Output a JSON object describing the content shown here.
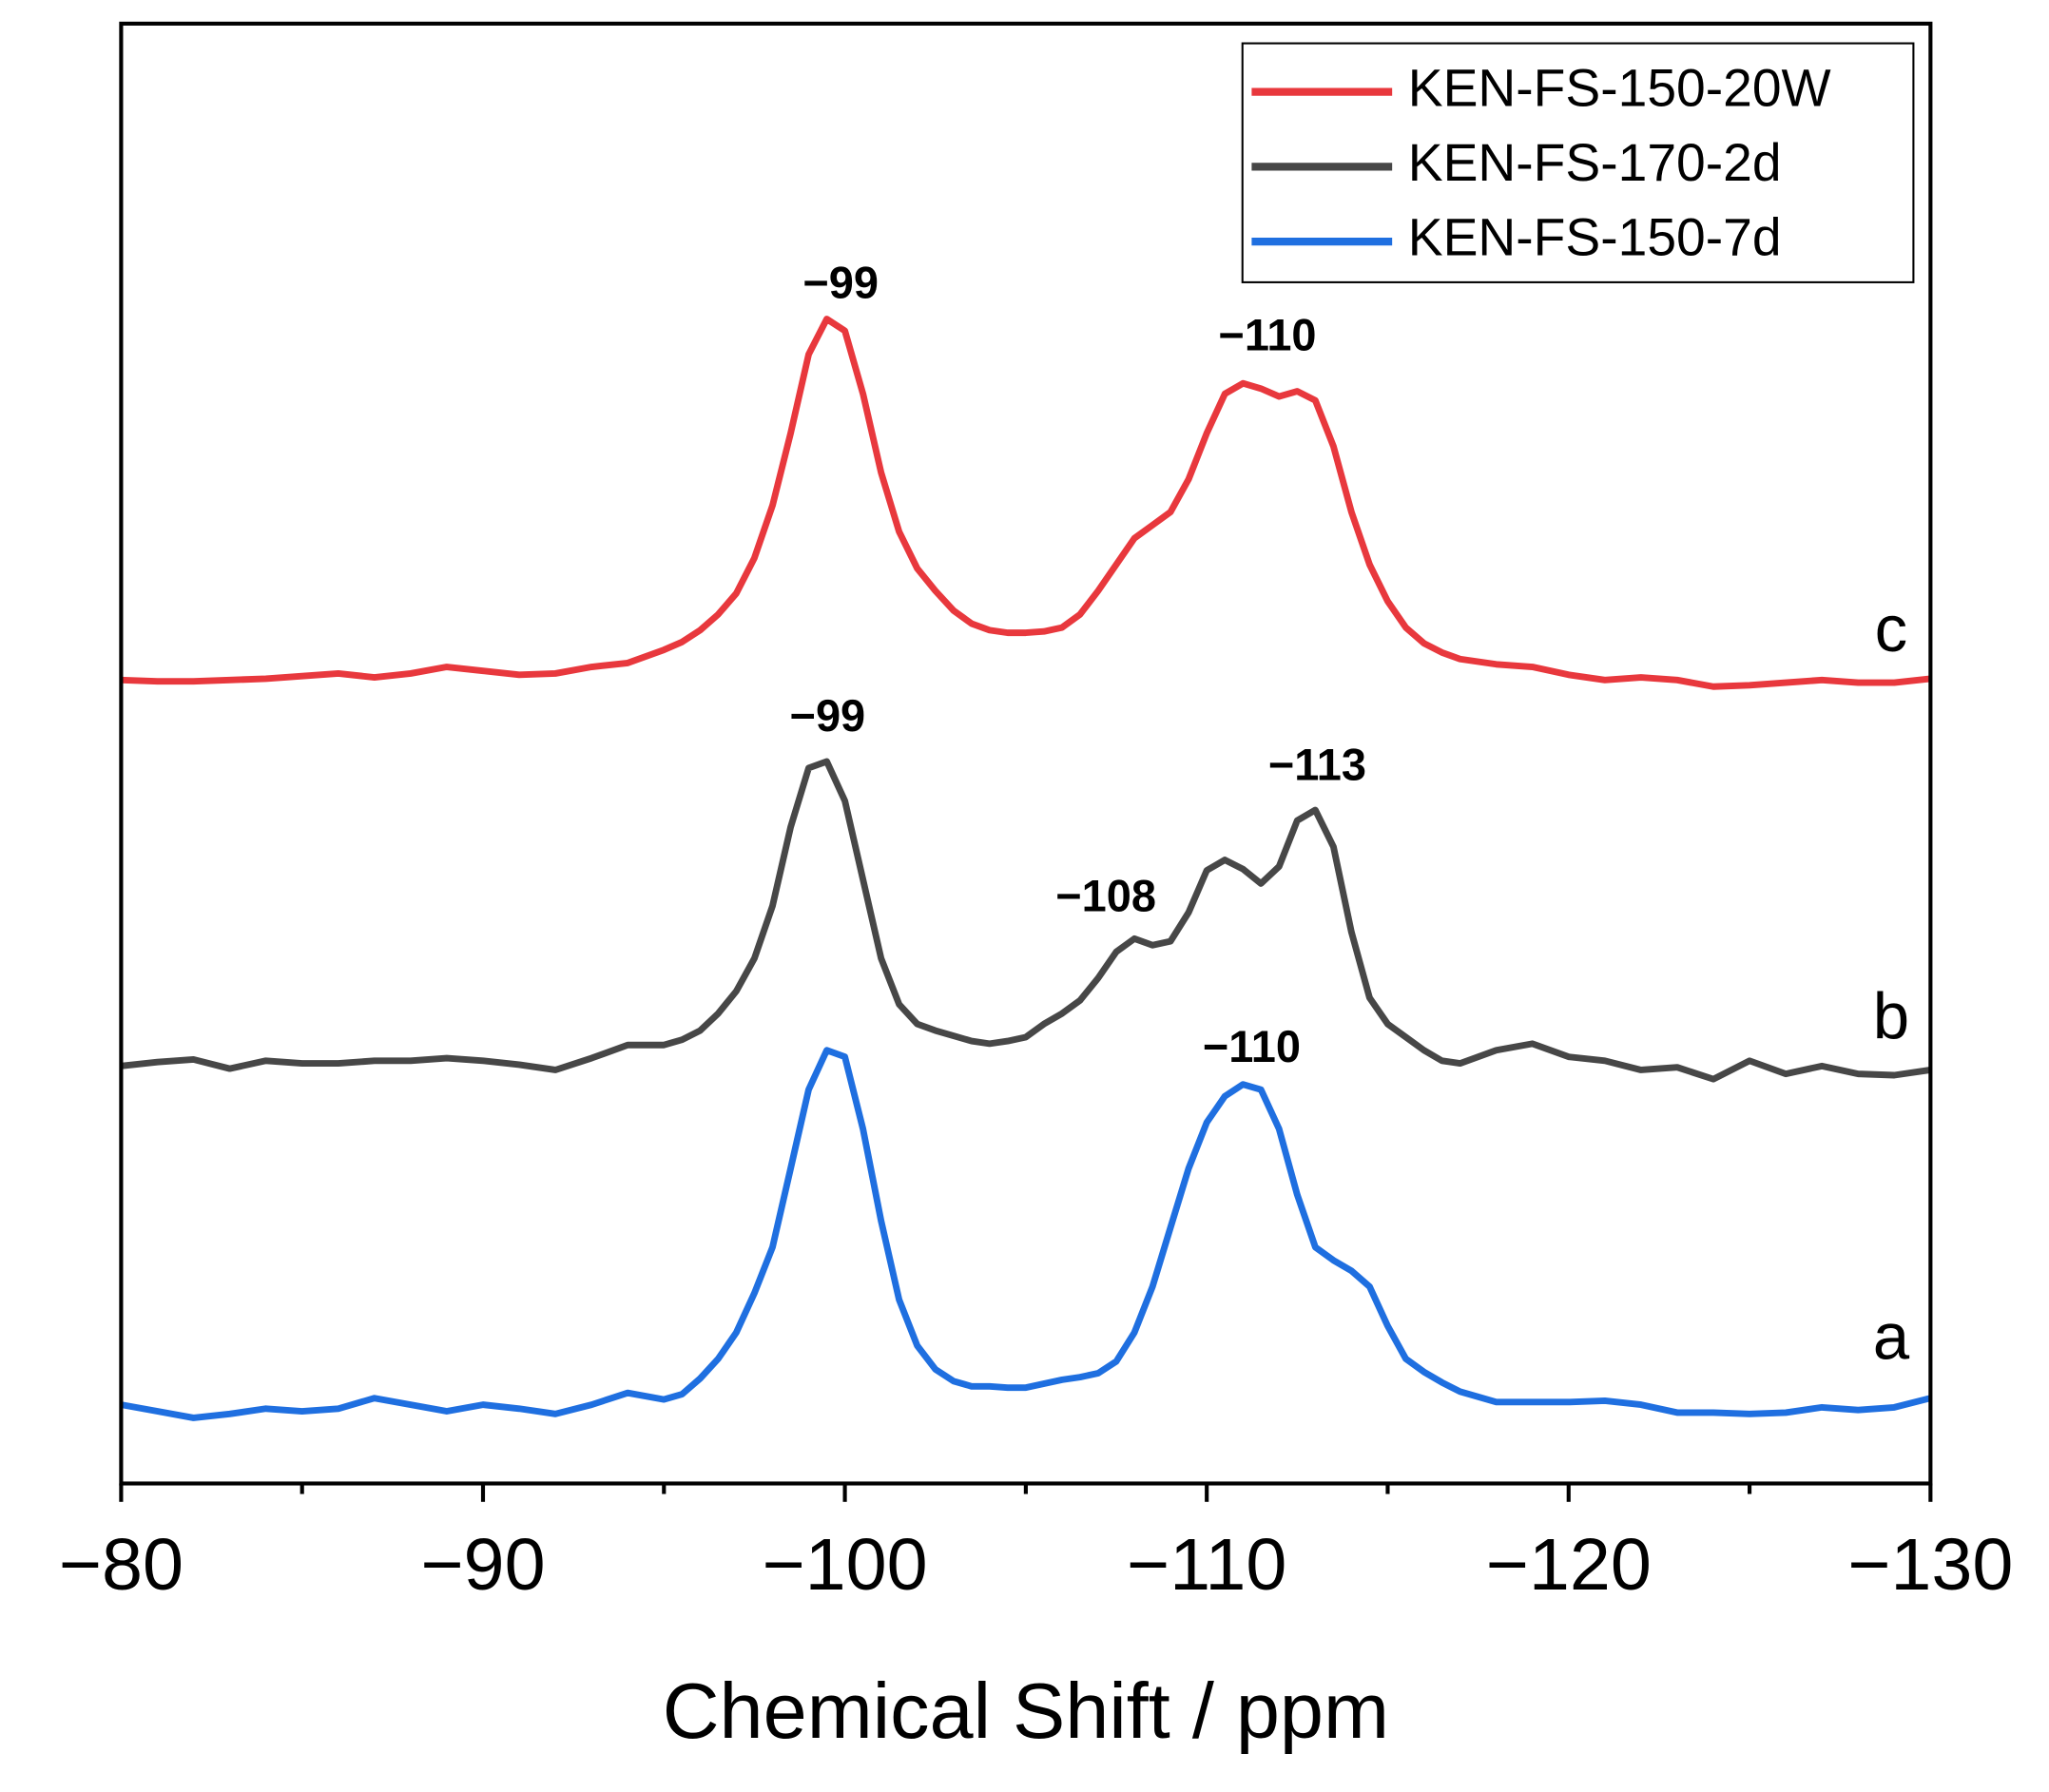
{
  "chart_data": {
    "type": "line",
    "xlabel": "Chemical Shift / ppm",
    "x": [
      -80,
      -81,
      -82,
      -83,
      -84,
      -85,
      -86,
      -87,
      -88,
      -89,
      -90,
      -91,
      -92,
      -93,
      -94,
      -95,
      -95.5,
      -96,
      -96.5,
      -97,
      -97.5,
      -98,
      -98.5,
      -99,
      -99.5,
      -100,
      -100.5,
      -101,
      -101.5,
      -102,
      -102.5,
      -103,
      -103.5,
      -104,
      -104.5,
      -105,
      -105.5,
      -106,
      -106.5,
      -107,
      -107.5,
      -108,
      -108.5,
      -109,
      -109.5,
      -110,
      -110.5,
      -111,
      -111.5,
      -112,
      -112.5,
      -113,
      -113.5,
      -114,
      -114.5,
      -115,
      -115.5,
      -116,
      -116.5,
      -117,
      -118,
      -119,
      -120,
      -121,
      -122,
      -123,
      -124,
      -125,
      -126,
      -127,
      -128,
      -129,
      -130
    ],
    "series": [
      {
        "name": "KEN-FS-150-20W",
        "color": "#e8383d",
        "values": [
          612,
          611,
          611,
          612,
          613,
          615,
          617,
          614,
          617,
          622,
          619,
          616,
          617,
          622,
          625,
          635,
          641,
          650,
          662,
          678,
          705,
          745,
          800,
          860,
          887,
          878,
          830,
          770,
          725,
          697,
          680,
          665,
          655,
          650,
          648,
          648,
          649,
          652,
          662,
          680,
          700,
          720,
          730,
          740,
          765,
          800,
          830,
          838,
          834,
          828,
          832,
          825,
          790,
          740,
          700,
          672,
          652,
          640,
          633,
          628,
          624,
          622,
          616,
          612,
          614,
          612,
          607,
          608,
          610,
          612,
          610,
          610,
          613
        ]
      },
      {
        "name": "KEN-FS-170-2d",
        "color": "#474747",
        "values": [
          318,
          321,
          323,
          316,
          322,
          320,
          320,
          322,
          322,
          324,
          322,
          319,
          315,
          324,
          334,
          334,
          338,
          345,
          358,
          375,
          400,
          440,
          500,
          545,
          550,
          520,
          460,
          400,
          365,
          350,
          345,
          341,
          337,
          335,
          337,
          340,
          350,
          358,
          368,
          385,
          405,
          415,
          410,
          413,
          435,
          467,
          475,
          468,
          457,
          470,
          505,
          513,
          485,
          420,
          370,
          350,
          340,
          330,
          322,
          320,
          330,
          335,
          325,
          322,
          315,
          317,
          308,
          322,
          312,
          318,
          312,
          311,
          315
        ]
      },
      {
        "name": "KEN-FS-150-7d",
        "color": "#1f6fe0",
        "values": [
          60,
          55,
          50,
          53,
          57,
          55,
          57,
          65,
          60,
          55,
          60,
          57,
          53,
          60,
          69,
          64,
          68,
          80,
          95,
          115,
          145,
          180,
          240,
          300,
          330,
          325,
          270,
          200,
          140,
          105,
          87,
          78,
          74,
          74,
          73,
          73,
          76,
          79,
          81,
          84,
          93,
          115,
          150,
          195,
          240,
          275,
          295,
          304,
          300,
          270,
          220,
          180,
          170,
          162,
          150,
          120,
          95,
          85,
          77,
          70,
          62,
          62,
          62,
          63,
          60,
          54,
          54,
          53,
          54,
          58,
          56,
          58,
          65
        ]
      }
    ],
    "xlim": [
      -80,
      -130
    ],
    "ylim": [
      0,
      1112
    ],
    "xticks": [
      {
        "value": -80,
        "label": "−80"
      },
      {
        "value": -90,
        "label": "−90"
      },
      {
        "value": -100,
        "label": "−100"
      },
      {
        "value": -110,
        "label": "−110"
      },
      {
        "value": -120,
        "label": "−120"
      },
      {
        "value": -130,
        "label": "−130"
      }
    ],
    "annotations": [
      "−99",
      "−110",
      "−99",
      "−108",
      "−113",
      "−110",
      "c",
      "b",
      "a"
    ],
    "legend": "upper right"
  }
}
